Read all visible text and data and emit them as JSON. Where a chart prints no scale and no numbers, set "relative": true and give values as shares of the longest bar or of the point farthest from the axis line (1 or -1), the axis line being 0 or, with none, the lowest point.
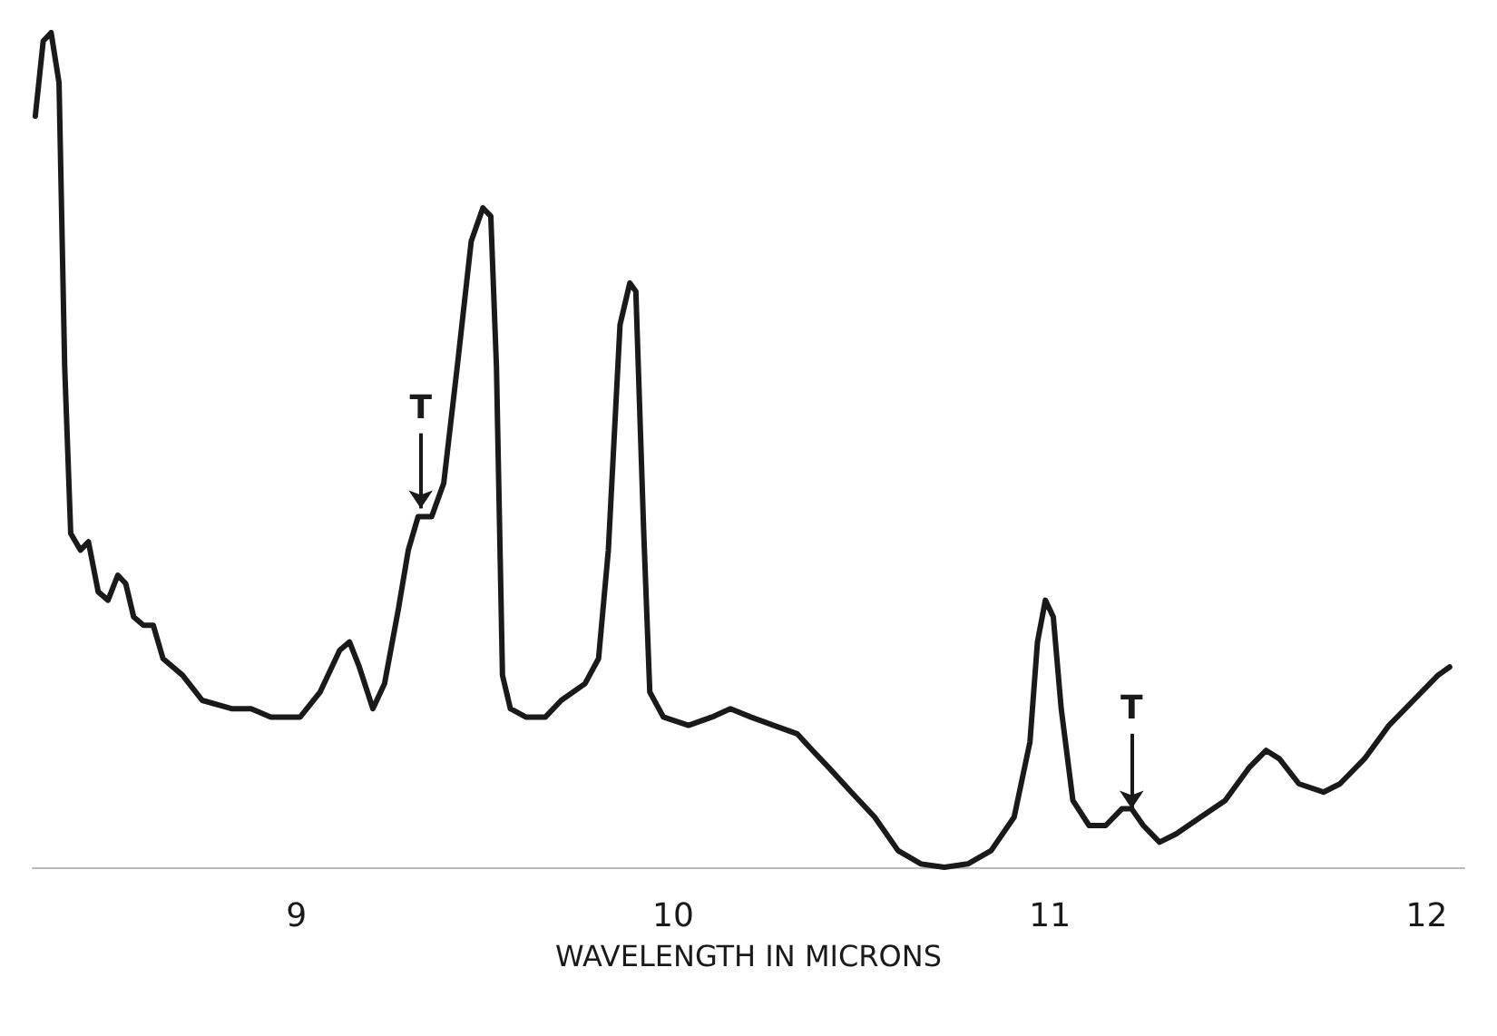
{
  "chart_data": {
    "type": "line",
    "xlabel": "WAVELENGTH IN MICRONS",
    "relative": true,
    "xlim": [
      8.3,
      12.1
    ],
    "xticks": [
      9,
      10,
      11,
      12
    ],
    "tick_labels": "x",
    "marker": "none",
    "line_style": "solid",
    "series": [
      {
        "color": "#1a1a1a",
        "x": [
          8.307,
          8.328,
          8.349,
          8.37,
          8.385,
          8.401,
          8.427,
          8.448,
          8.474,
          8.5,
          8.526,
          8.547,
          8.568,
          8.594,
          8.62,
          8.646,
          8.698,
          8.75,
          8.828,
          8.88,
          8.932,
          9.01,
          9.063,
          9.115,
          9.141,
          9.167,
          9.203,
          9.234,
          9.271,
          9.297,
          9.323,
          9.359,
          9.391,
          9.427,
          9.464,
          9.495,
          9.516,
          9.531,
          9.547,
          9.568,
          9.609,
          9.661,
          9.703,
          9.766,
          9.802,
          9.828,
          9.859,
          9.885,
          9.901,
          9.922,
          9.938,
          9.974,
          10.041,
          10.103,
          10.152,
          10.206,
          10.267,
          10.329,
          10.37,
          10.412,
          10.473,
          10.535,
          10.597,
          10.658,
          10.72,
          10.782,
          10.844,
          10.905,
          10.947,
          10.967,
          10.988,
          11.009,
          11.03,
          11.061,
          11.104,
          11.148,
          11.191,
          11.217,
          11.248,
          11.291,
          11.335,
          11.4,
          11.465,
          11.53,
          11.574,
          11.609,
          11.661,
          11.726,
          11.77,
          11.835,
          11.9,
          11.965,
          12.03,
          12.061
        ],
        "values": [
          0.9,
          0.99,
          1,
          0.94,
          0.6,
          0.4,
          0.38,
          0.39,
          0.33,
          0.32,
          0.35,
          0.34,
          0.3,
          0.29,
          0.29,
          0.25,
          0.23,
          0.2,
          0.19,
          0.19,
          0.18,
          0.18,
          0.21,
          0.26,
          0.27,
          0.24,
          0.19,
          0.22,
          0.31,
          0.38,
          0.42,
          0.42,
          0.46,
          0.6,
          0.75,
          0.79,
          0.78,
          0.6,
          0.23,
          0.19,
          0.18,
          0.18,
          0.2,
          0.22,
          0.25,
          0.38,
          0.65,
          0.7,
          0.69,
          0.4,
          0.21,
          0.18,
          0.17,
          0.18,
          0.19,
          0.18,
          0.17,
          0.16,
          0.14,
          0.12,
          0.09,
          0.06,
          0.02,
          0.004,
          0,
          0.004,
          0.02,
          0.06,
          0.15,
          0.27,
          0.32,
          0.3,
          0.19,
          0.08,
          0.05,
          0.05,
          0.07,
          0.07,
          0.05,
          0.03,
          0.04,
          0.06,
          0.08,
          0.12,
          0.14,
          0.13,
          0.1,
          0.09,
          0.1,
          0.13,
          0.17,
          0.2,
          0.23,
          0.24
        ]
      }
    ],
    "annotations": [
      {
        "text": "T",
        "x": 9.33,
        "y": 0.43
      },
      {
        "text": "T",
        "x": 11.217,
        "y": 0.07
      }
    ]
  }
}
